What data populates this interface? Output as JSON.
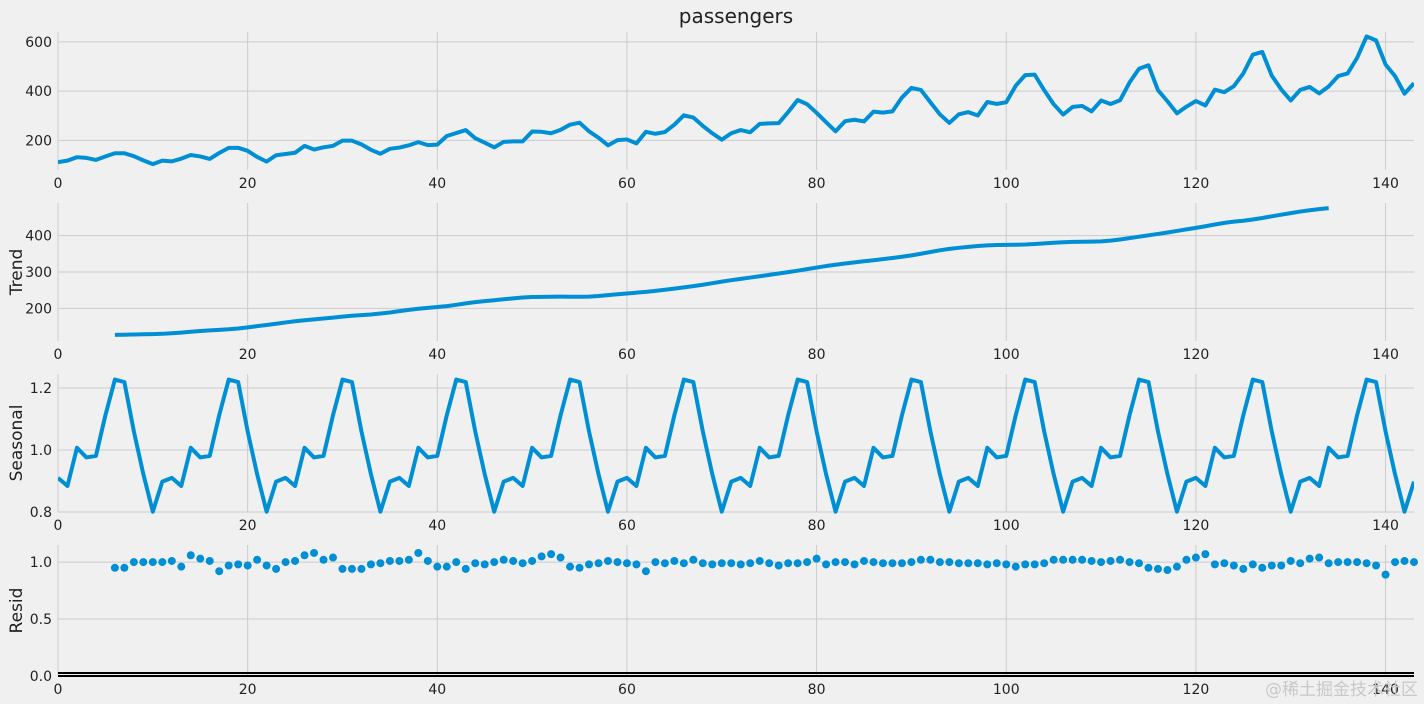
{
  "figure_title": "passengers",
  "watermark": "@稀土掘金技术社区",
  "colors": {
    "line": "#008fd5",
    "grid": "#cbcbcb",
    "background": "#f0f0f0",
    "zero_line": "#000000"
  },
  "chart_data": [
    {
      "type": "line",
      "title": "passengers",
      "ylabel": "",
      "xlim": [
        0,
        143
      ],
      "ylim": [
        80,
        640
      ],
      "xticks": [
        0,
        20,
        40,
        60,
        80,
        100,
        120,
        140
      ],
      "yticks": [
        200,
        400,
        600
      ],
      "grid": true,
      "series": [
        {
          "x_start": 0,
          "values": [
            112,
            118,
            132,
            129,
            121,
            135,
            148,
            148,
            136,
            119,
            104,
            118,
            115,
            126,
            141,
            135,
            125,
            149,
            170,
            170,
            158,
            133,
            114,
            140,
            145,
            150,
            178,
            163,
            172,
            178,
            199,
            199,
            184,
            162,
            146,
            166,
            171,
            180,
            193,
            181,
            183,
            218,
            230,
            242,
            209,
            191,
            172,
            194,
            196,
            196,
            236,
            235,
            229,
            243,
            264,
            272,
            237,
            211,
            180,
            201,
            204,
            188,
            235,
            227,
            234,
            264,
            302,
            293,
            259,
            229,
            203,
            229,
            242,
            233,
            267,
            269,
            270,
            315,
            364,
            347,
            312,
            274,
            237,
            278,
            284,
            277,
            317,
            313,
            318,
            374,
            413,
            405,
            355,
            306,
            271,
            306,
            315,
            301,
            356,
            348,
            355,
            422,
            465,
            467,
            404,
            347,
            305,
            336,
            340,
            318,
            362,
            348,
            363,
            435,
            491,
            505,
            404,
            359,
            310,
            337,
            360,
            342,
            406,
            396,
            420,
            472,
            548,
            559,
            463,
            407,
            362,
            405,
            417,
            391,
            419,
            461,
            472,
            535,
            622,
            606,
            508,
            461,
            390,
            432
          ]
        }
      ]
    },
    {
      "type": "line",
      "title": "",
      "ylabel": "Trend",
      "xlim": [
        0,
        143
      ],
      "ylim": [
        110,
        490
      ],
      "xticks": [
        0,
        20,
        40,
        60,
        80,
        100,
        120,
        140
      ],
      "yticks": [
        200,
        300,
        400
      ],
      "grid": true,
      "series": [
        {
          "x_start": 6,
          "values": [
            127,
            127.2,
            127.9,
            128.6,
            129,
            129.8,
            131.2,
            133.1,
            135.4,
            137.4,
            139.3,
            140.7,
            142.3,
            144.5,
            147.5,
            150.9,
            154.1,
            157.5,
            161.1,
            164.3,
            167.0,
            169.6,
            172.1,
            174.5,
            177.0,
            179.4,
            181.3,
            183.1,
            185.6,
            188.6,
            192.2,
            195.8,
            198.8,
            201.2,
            203.5,
            206.1,
            209.6,
            213.5,
            217.0,
            219.8,
            222.2,
            224.9,
            227.5,
            229.8,
            231.0,
            231.6,
            232.0,
            232.2,
            232.0,
            231.8,
            232.3,
            233.8,
            236.2,
            238.7,
            240.9,
            243.1,
            245.4,
            248.0,
            251.0,
            254.3,
            257.7,
            261.2,
            265.0,
            269.2,
            273.4,
            277.4,
            281.0,
            284.7,
            288.3,
            292.0,
            295.8,
            299.6,
            303.6,
            307.9,
            312.2,
            316.4,
            320.0,
            323.4,
            326.6,
            329.6,
            332.5,
            335.5,
            338.6,
            342.0,
            345.8,
            350.3,
            355.0,
            359.7,
            363.6,
            366.6,
            369.2,
            371.5,
            373.3,
            374.4,
            374.8,
            375.0,
            375.6,
            377.0,
            378.8,
            380.6,
            382.0,
            382.9,
            383.2,
            383.5,
            384.3,
            386.4,
            389.6,
            393.3,
            397.2,
            401.0,
            404.8,
            408.7,
            413.0,
            417.4,
            421.6,
            426.0,
            430.8,
            435.3,
            438.6,
            441.1,
            444.5,
            448.7,
            453.3,
            457.8,
            462.2,
            466.4,
            470.0,
            473.1,
            476.0
          ]
        }
      ]
    },
    {
      "type": "line",
      "title": "",
      "ylabel": "Seasonal",
      "xlim": [
        0,
        143
      ],
      "ylim": [
        0.8,
        1.245
      ],
      "xticks": [
        0,
        20,
        40,
        60,
        80,
        100,
        120,
        140
      ],
      "yticks": [
        0.8,
        1.0,
        1.2
      ],
      "grid": true,
      "series": [
        {
          "x_start": 0,
          "period": 12,
          "values": [
            0.91,
            0.884,
            1.007,
            0.976,
            0.981,
            1.112,
            1.227,
            1.219,
            1.06,
            0.922,
            0.801,
            0.898
          ]
        }
      ]
    },
    {
      "type": "scatter",
      "title": "",
      "ylabel": "Resid",
      "xlim": [
        0,
        143
      ],
      "ylim": [
        0,
        1.15
      ],
      "xticks": [
        0,
        20,
        40,
        60,
        80,
        100,
        120,
        140
      ],
      "yticks": [
        0.0,
        0.5,
        1.0
      ],
      "grid": true,
      "zero_line": true,
      "series": [
        {
          "x_start": 6,
          "values": [
            0.95,
            0.95,
            1.0,
            1.0,
            1.0,
            1.0,
            1.01,
            0.96,
            1.06,
            1.03,
            1.01,
            0.92,
            0.97,
            0.98,
            0.97,
            1.02,
            0.97,
            0.94,
            1.0,
            1.01,
            1.06,
            1.08,
            1.02,
            1.04,
            0.94,
            0.94,
            0.94,
            0.98,
            0.99,
            1.01,
            1.01,
            1.02,
            1.08,
            1.01,
            0.96,
            0.96,
            1.0,
            0.94,
            0.99,
            0.98,
            1.0,
            1.02,
            1.01,
            0.99,
            1.01,
            1.05,
            1.07,
            1.04,
            0.96,
            0.95,
            0.98,
            0.99,
            1.01,
            1.0,
            0.99,
            0.98,
            0.92,
            1.0,
            0.99,
            1.01,
            0.99,
            1.02,
            0.99,
            0.98,
            0.99,
            0.99,
            0.98,
            0.99,
            1.01,
            0.99,
            0.97,
            0.99,
            0.99,
            1.0,
            1.03,
            0.98,
            1.0,
            1.0,
            0.98,
            1.01,
            1.0,
            0.99,
            0.99,
            0.99,
            1.0,
            1.02,
            1.02,
            1.0,
            1.0,
            0.99,
            0.99,
            0.99,
            0.98,
            0.99,
            0.98,
            0.96,
            0.98,
            0.98,
            0.99,
            1.02,
            1.02,
            1.02,
            1.02,
            1.01,
            1.0,
            1.01,
            1.02,
            1.0,
            0.99,
            0.95,
            0.94,
            0.93,
            0.96,
            1.02,
            1.04,
            1.07,
            0.98,
            0.99,
            0.97,
            0.94,
            0.98,
            0.95,
            0.97,
            0.97,
            1.01,
            0.99,
            1.03,
            1.04,
            0.99,
            1.0,
            1.0,
            1.0,
            0.99,
            0.97,
            0.89,
            1.0,
            1.01,
            1.0
          ]
        }
      ]
    }
  ]
}
